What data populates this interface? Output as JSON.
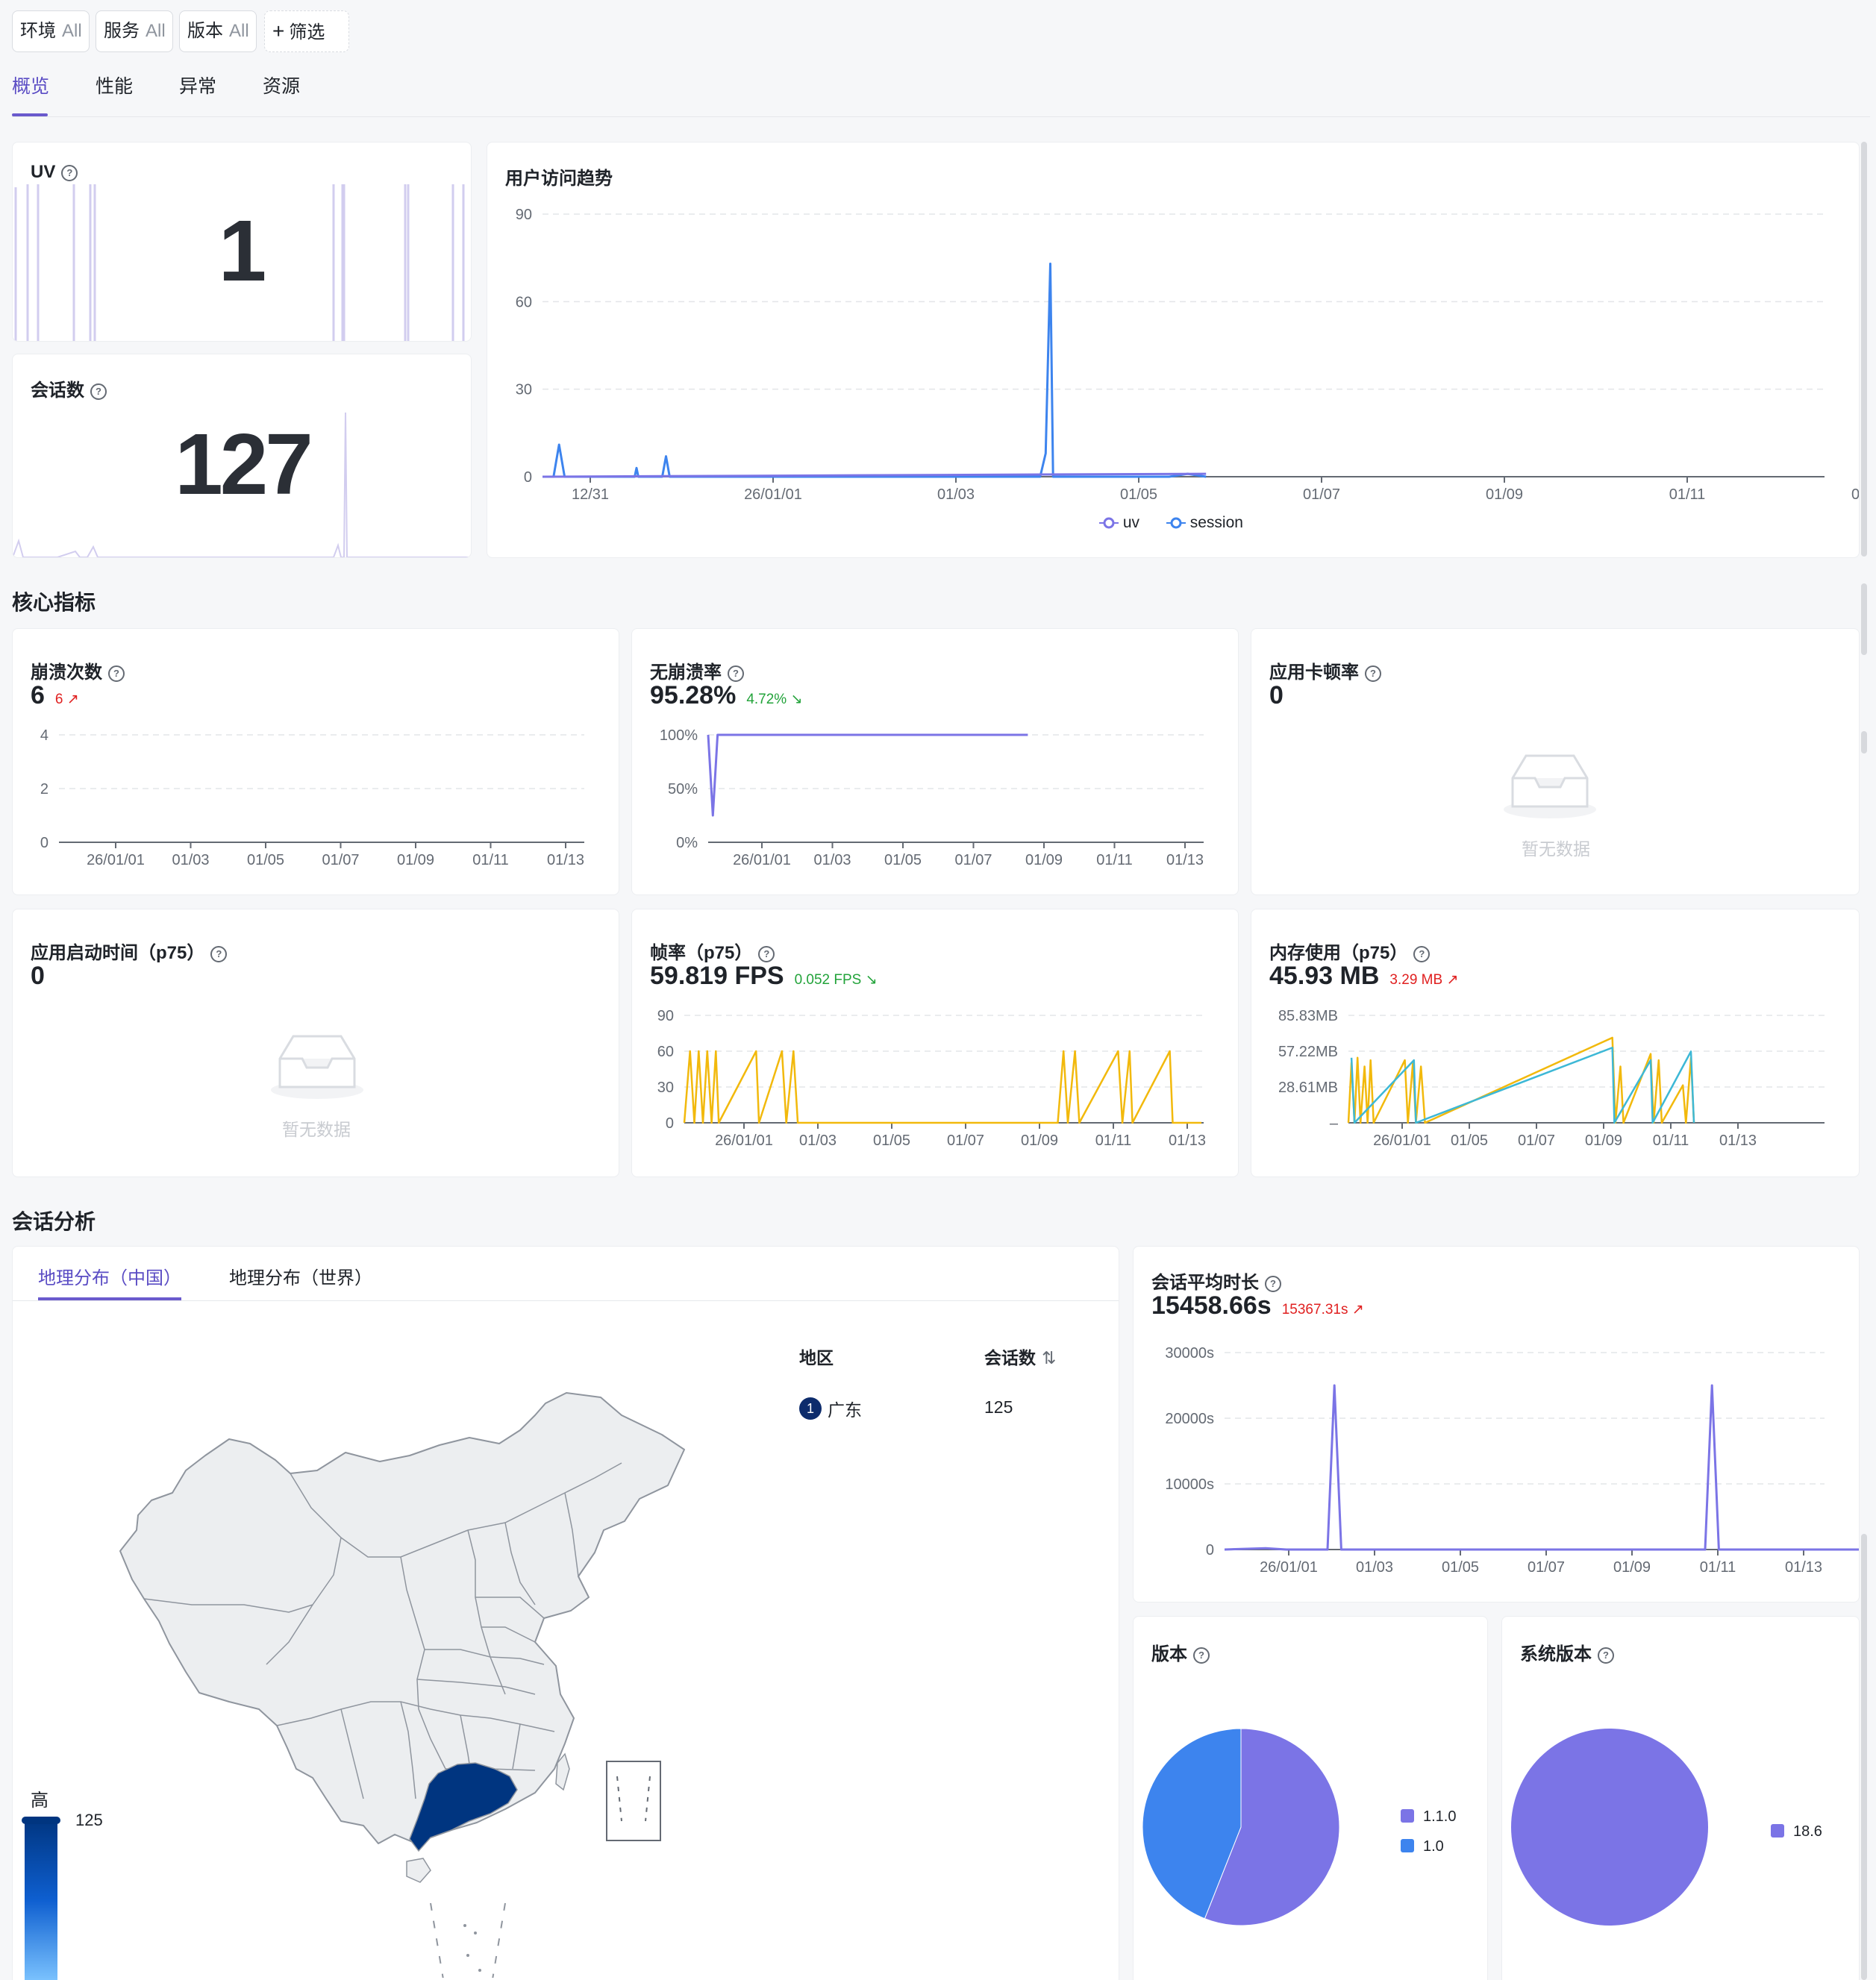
{
  "filters": [
    {
      "label": "环境",
      "value": "All"
    },
    {
      "label": "服务",
      "value": "All"
    },
    {
      "label": "版本",
      "value": "All"
    }
  ],
  "filter_add_label": "筛选",
  "tabs": [
    {
      "label": "概览",
      "active": true
    },
    {
      "label": "性能",
      "active": false
    },
    {
      "label": "异常",
      "active": false
    },
    {
      "label": "资源",
      "active": false
    }
  ],
  "uv": {
    "title": "UV",
    "value": "1"
  },
  "sessions": {
    "title": "会话数",
    "value": "127"
  },
  "trend": {
    "title": "用户访问趋势",
    "legend": [
      {
        "name": "uv",
        "color": "#7b74e6"
      },
      {
        "name": "session",
        "color": "#3d84ee"
      }
    ]
  },
  "core_metrics_title": "核心指标",
  "crash_count": {
    "title": "崩溃次数",
    "value": "6",
    "delta": "6",
    "trend": "up"
  },
  "crash_free": {
    "title": "无崩溃率",
    "value": "95.28%",
    "delta": "4.72%",
    "trend": "down"
  },
  "jank_rate": {
    "title": "应用卡顿率",
    "value": "0",
    "empty_text": "暂无数据"
  },
  "startup_time": {
    "title": "应用启动时间（p75）",
    "value": "0",
    "empty_text": "暂无数据"
  },
  "frame_rate": {
    "title": "帧率（p75）",
    "value": "59.819 FPS",
    "delta": "0.052 FPS",
    "trend": "down"
  },
  "memory": {
    "title": "内存使用（p75）",
    "value": "45.93 MB",
    "delta": "3.29 MB",
    "trend": "up"
  },
  "session_analysis_title": "会话分析",
  "geo_tabs": [
    {
      "label": "地理分布（中国）",
      "active": true
    },
    {
      "label": "地理分布（世界）",
      "active": false
    }
  ],
  "geo_table": {
    "headers": [
      "地区",
      "会话数"
    ],
    "rows": [
      {
        "rank": "1",
        "region": "广东",
        "sessions": "125"
      }
    ]
  },
  "map_legend": {
    "high_label": "高",
    "max_value": "125",
    "highlight_color": "#003580"
  },
  "avg_duration": {
    "title": "会话平均时长",
    "value": "15458.66s",
    "delta": "15367.31s",
    "trend": "up"
  },
  "version_pie": {
    "title": "版本"
  },
  "os_version_pie": {
    "title": "系统版本"
  },
  "chart_data": [
    {
      "id": "user_trend",
      "type": "line",
      "title": "用户访问趋势",
      "x_ticks": [
        "12/31",
        "26/01/01",
        "01/03",
        "01/05",
        "01/07",
        "01/09",
        "01/11",
        "01/13"
      ],
      "y_ticks": [
        "0",
        "30",
        "60",
        "90"
      ],
      "ylim": [
        0,
        90
      ],
      "series": [
        {
          "name": "session",
          "color": "#3d84ee",
          "points": [
            [
              0,
              0
            ],
            [
              0.6,
              0
            ],
            [
              0.9,
              11
            ],
            [
              1.2,
              0
            ],
            [
              5,
              0
            ],
            [
              5.1,
              3
            ],
            [
              5.2,
              0
            ],
            [
              6.5,
              0
            ],
            [
              6.7,
              7
            ],
            [
              6.9,
              0
            ],
            [
              27,
              0
            ],
            [
              27.3,
              8
            ],
            [
              27.55,
              73
            ],
            [
              27.7,
              0
            ],
            [
              34,
              0
            ],
            [
              35,
              1
            ],
            [
              36,
              0
            ]
          ]
        },
        {
          "name": "uv",
          "color": "#7b74e6",
          "points": [
            [
              0,
              0
            ],
            [
              36,
              1
            ]
          ]
        }
      ]
    },
    {
      "id": "crash_count",
      "type": "line",
      "x_ticks": [
        "26/01/01",
        "01/03",
        "01/05",
        "01/07",
        "01/09",
        "01/11",
        "01/13"
      ],
      "y_ticks": [
        "0",
        "2",
        "4"
      ],
      "ylim": [
        0,
        4
      ],
      "series": []
    },
    {
      "id": "crash_free",
      "type": "line",
      "x_ticks": [
        "26/01/01",
        "01/03",
        "01/05",
        "01/07",
        "01/09",
        "01/11",
        "01/13"
      ],
      "y_ticks": [
        "0%",
        "50%",
        "100%"
      ],
      "ylim": [
        0,
        100
      ],
      "series": [
        {
          "name": "无崩溃率",
          "color": "#7b74e6",
          "points": [
            [
              0,
              100
            ],
            [
              0.1,
              25
            ],
            [
              0.2,
              100
            ],
            [
              6.8,
              100
            ]
          ]
        }
      ]
    },
    {
      "id": "frame_rate",
      "type": "line",
      "x_ticks": [
        "26/01/01",
        "01/03",
        "01/05",
        "01/07",
        "01/09",
        "01/11",
        "01/13"
      ],
      "y_ticks": [
        "0",
        "30",
        "60",
        "90"
      ],
      "ylim": [
        0,
        90
      ],
      "series": [
        {
          "name": "帧率",
          "color": "#f2b90c",
          "points": [
            [
              0,
              0
            ],
            [
              0.2,
              60
            ],
            [
              0.35,
              0
            ],
            [
              0.5,
              60
            ],
            [
              0.65,
              0
            ],
            [
              0.8,
              60
            ],
            [
              0.95,
              0
            ],
            [
              1.1,
              60
            ],
            [
              1.2,
              0
            ],
            [
              2.5,
              60
            ],
            [
              2.6,
              0
            ],
            [
              3.4,
              60
            ],
            [
              3.55,
              0
            ],
            [
              3.8,
              60
            ],
            [
              3.95,
              0
            ],
            [
              13.0,
              0
            ],
            [
              13.2,
              60
            ],
            [
              13.35,
              0
            ],
            [
              13.6,
              60
            ],
            [
              13.75,
              0
            ],
            [
              15.1,
              60
            ],
            [
              15.25,
              0
            ],
            [
              15.5,
              60
            ],
            [
              15.6,
              0
            ],
            [
              16.9,
              60
            ],
            [
              17.0,
              0
            ],
            [
              18,
              0
            ]
          ]
        }
      ]
    },
    {
      "id": "memory",
      "type": "line",
      "x_ticks": [
        "26/01/01",
        "01/05",
        "01/07",
        "01/09",
        "01/11",
        "01/13"
      ],
      "y_ticks": [
        "–",
        "28.61MB",
        "57.22MB",
        "85.83MB"
      ],
      "ylim": [
        0,
        85.83
      ],
      "series": [
        {
          "name": "内存使用",
          "color": "#f2b90c",
          "points": [
            [
              0,
              0
            ],
            [
              0.15,
              48
            ],
            [
              0.3,
              0
            ],
            [
              0.45,
              52
            ],
            [
              0.6,
              0
            ],
            [
              0.8,
              45
            ],
            [
              0.95,
              0
            ],
            [
              1.1,
              50
            ],
            [
              1.25,
              0
            ],
            [
              2.8,
              50
            ],
            [
              2.95,
              0
            ],
            [
              3.2,
              48
            ],
            [
              3.35,
              0
            ],
            [
              3.6,
              45
            ],
            [
              3.8,
              0
            ],
            [
              13.1,
              68
            ],
            [
              13.25,
              0
            ],
            [
              13.5,
              45
            ],
            [
              13.65,
              0
            ],
            [
              15.0,
              55
            ],
            [
              15.15,
              0
            ],
            [
              15.4,
              50
            ],
            [
              15.55,
              0
            ],
            [
              16.6,
              30
            ],
            [
              16.75,
              0
            ],
            [
              17.0,
              52
            ],
            [
              17.15,
              0
            ]
          ]
        },
        {
          "name": "内存使用(2)",
          "color": "#3db8d6",
          "points": [
            [
              0.15,
              52
            ],
            [
              0.3,
              0
            ],
            [
              3.25,
              50
            ],
            [
              3.35,
              0
            ],
            [
              13.1,
              60
            ],
            [
              13.2,
              0
            ],
            [
              15.0,
              50
            ],
            [
              15.1,
              0
            ],
            [
              17.0,
              57
            ],
            [
              17.15,
              0
            ]
          ]
        }
      ]
    },
    {
      "id": "avg_duration",
      "type": "line",
      "x_ticks": [
        "26/01/01",
        "01/03",
        "01/05",
        "01/07",
        "01/09",
        "01/11",
        "01/13"
      ],
      "y_ticks": [
        "0",
        "10000s",
        "20000s",
        "30000s"
      ],
      "ylim": [
        0,
        30000
      ],
      "series": [
        {
          "name": "会话平均时长",
          "color": "#7b74e6",
          "points": [
            [
              0,
              0
            ],
            [
              0.6,
              200
            ],
            [
              0.9,
              0
            ],
            [
              1.5,
              0
            ],
            [
              1.6,
              25000
            ],
            [
              1.7,
              0
            ],
            [
              7.0,
              0
            ],
            [
              7.1,
              25000
            ],
            [
              7.2,
              0
            ],
            [
              9.5,
              0
            ]
          ]
        }
      ]
    },
    {
      "id": "version_pie",
      "type": "pie",
      "slices": [
        {
          "label": "1.1.0",
          "value": 56,
          "color": "#7b74e6"
        },
        {
          "label": "1.0",
          "value": 44,
          "color": "#3d84ee"
        }
      ]
    },
    {
      "id": "os_version_pie",
      "type": "pie",
      "slices": [
        {
          "label": "18.6",
          "value": 100,
          "color": "#7b74e6"
        }
      ]
    }
  ]
}
